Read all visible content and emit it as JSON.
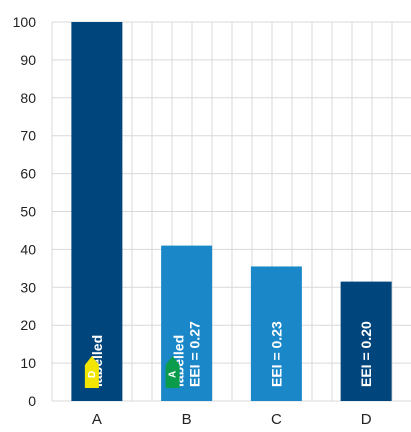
{
  "chart_data": {
    "type": "bar",
    "categories": [
      "A",
      "B",
      "C",
      "D"
    ],
    "values": [
      100,
      41,
      35.5,
      31.5
    ],
    "ylim": [
      0,
      100
    ],
    "yticks": [
      0,
      10,
      20,
      30,
      40,
      50,
      60,
      70,
      80,
      90,
      100
    ],
    "grid": true,
    "bar_colors": [
      "#00457c",
      "#1a87c9",
      "#1a87c9",
      "#00457c"
    ],
    "labels": [
      [
        "labelled"
      ],
      [
        "labelled",
        "EEI = 0.27"
      ],
      [
        "EEI = 0.23"
      ],
      [
        "EEI = 0.20"
      ]
    ],
    "badges": [
      {
        "letter": "D",
        "color": "#f2e600"
      },
      {
        "letter": "A",
        "color": "#0a9c4a"
      },
      null,
      null
    ]
  }
}
